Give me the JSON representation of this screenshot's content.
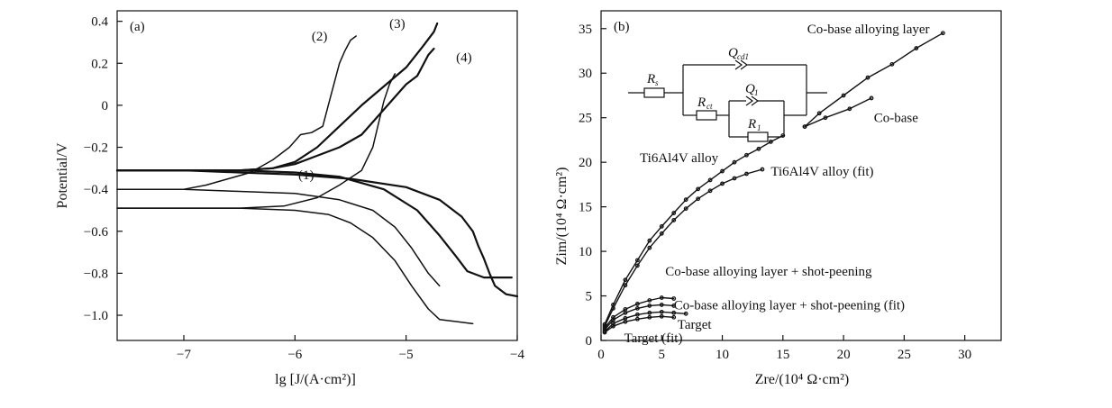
{
  "chart_data": [
    {
      "panel": "(a)",
      "type": "line",
      "xlabel": "lg [J/(A·cm²)]",
      "ylabel": "Potential/V",
      "xlim": [
        -7.6,
        -4.0
      ],
      "ylim": [
        -1.12,
        0.45
      ],
      "xticks": [
        "−7",
        "−6",
        "−5",
        "−4"
      ],
      "xtick_values": [
        -7,
        -6,
        -5,
        -4
      ],
      "yticks": [
        "0.4",
        "0.2",
        "0",
        "−0.2",
        "−0.4",
        "−0.6",
        "−0.8",
        "−1.0"
      ],
      "ytick_values": [
        0.4,
        0.2,
        0,
        -0.2,
        -0.4,
        -0.6,
        -0.8,
        -1.0
      ],
      "series": [
        {
          "name": "(1)",
          "label_pos": [
            -5.97,
            -0.33
          ],
          "cathodic": [
            [
              -7.6,
              -0.49
            ],
            [
              -7.0,
              -0.49
            ],
            [
              -6.5,
              -0.49
            ],
            [
              -6.0,
              -0.5
            ],
            [
              -5.7,
              -0.52
            ],
            [
              -5.5,
              -0.56
            ],
            [
              -5.3,
              -0.63
            ],
            [
              -5.1,
              -0.74
            ],
            [
              -4.95,
              -0.86
            ],
            [
              -4.8,
              -0.97
            ],
            [
              -4.7,
              -1.02
            ],
            [
              -4.4,
              -1.04
            ]
          ],
          "anodic": [
            [
              -7.6,
              -0.49
            ],
            [
              -7.0,
              -0.49
            ],
            [
              -6.5,
              -0.49
            ],
            [
              -6.1,
              -0.48
            ],
            [
              -5.8,
              -0.44
            ],
            [
              -5.6,
              -0.38
            ],
            [
              -5.4,
              -0.31
            ],
            [
              -5.3,
              -0.2
            ],
            [
              -5.25,
              -0.09
            ],
            [
              -5.2,
              0.02
            ],
            [
              -5.15,
              0.1
            ],
            [
              -5.1,
              0.15
            ]
          ]
        },
        {
          "name": "(2)",
          "label_pos": [
            -5.85,
            0.33
          ],
          "cathodic": [
            [
              -7.6,
              -0.4
            ],
            [
              -7.0,
              -0.4
            ],
            [
              -6.5,
              -0.41
            ],
            [
              -6.0,
              -0.42
            ],
            [
              -5.6,
              -0.45
            ],
            [
              -5.3,
              -0.5
            ],
            [
              -5.1,
              -0.58
            ],
            [
              -4.95,
              -0.68
            ],
            [
              -4.8,
              -0.8
            ],
            [
              -4.7,
              -0.86
            ]
          ],
          "anodic": [
            [
              -7.6,
              -0.4
            ],
            [
              -7.0,
              -0.4
            ],
            [
              -6.8,
              -0.38
            ],
            [
              -6.6,
              -0.35
            ],
            [
              -6.4,
              -0.32
            ],
            [
              -6.2,
              -0.26
            ],
            [
              -6.05,
              -0.2
            ],
            [
              -5.95,
              -0.14
            ],
            [
              -5.85,
              -0.13
            ],
            [
              -5.75,
              -0.1
            ],
            [
              -5.7,
              0.0
            ],
            [
              -5.65,
              0.1
            ],
            [
              -5.6,
              0.2
            ],
            [
              -5.55,
              0.26
            ],
            [
              -5.5,
              0.31
            ],
            [
              -5.45,
              0.33
            ]
          ]
        },
        {
          "name": "(3)",
          "label_pos": [
            -5.15,
            0.39
          ],
          "cathodic": [
            [
              -7.6,
              -0.31
            ],
            [
              -7.0,
              -0.31
            ],
            [
              -6.5,
              -0.31
            ],
            [
              -6.0,
              -0.32
            ],
            [
              -5.6,
              -0.34
            ],
            [
              -5.2,
              -0.4
            ],
            [
              -4.9,
              -0.5
            ],
            [
              -4.7,
              -0.62
            ],
            [
              -4.55,
              -0.72
            ],
            [
              -4.45,
              -0.79
            ],
            [
              -4.3,
              -0.82
            ],
            [
              -4.05,
              -0.82
            ]
          ],
          "anodic": [
            [
              -7.6,
              -0.31
            ],
            [
              -7.0,
              -0.31
            ],
            [
              -6.5,
              -0.31
            ],
            [
              -6.2,
              -0.3
            ],
            [
              -6.0,
              -0.27
            ],
            [
              -5.8,
              -0.2
            ],
            [
              -5.6,
              -0.1
            ],
            [
              -5.4,
              0.0
            ],
            [
              -5.2,
              0.09
            ],
            [
              -5.0,
              0.18
            ],
            [
              -4.85,
              0.28
            ],
            [
              -4.75,
              0.35
            ],
            [
              -4.72,
              0.39
            ]
          ]
        },
        {
          "name": "(4)",
          "label_pos": [
            -4.55,
            0.23
          ],
          "cathodic": [
            [
              -7.6,
              -0.31
            ],
            [
              -7.0,
              -0.31
            ],
            [
              -6.5,
              -0.32
            ],
            [
              -6.0,
              -0.33
            ],
            [
              -5.5,
              -0.35
            ],
            [
              -5.0,
              -0.39
            ],
            [
              -4.7,
              -0.45
            ],
            [
              -4.5,
              -0.53
            ],
            [
              -4.4,
              -0.6
            ],
            [
              -4.35,
              -0.67
            ],
            [
              -4.3,
              -0.73
            ],
            [
              -4.25,
              -0.8
            ],
            [
              -4.2,
              -0.86
            ],
            [
              -4.1,
              -0.9
            ],
            [
              -4.0,
              -0.91
            ]
          ],
          "anodic": [
            [
              -7.6,
              -0.31
            ],
            [
              -7.0,
              -0.31
            ],
            [
              -6.5,
              -0.31
            ],
            [
              -6.2,
              -0.3
            ],
            [
              -6.0,
              -0.28
            ],
            [
              -5.8,
              -0.24
            ],
            [
              -5.6,
              -0.2
            ],
            [
              -5.4,
              -0.14
            ],
            [
              -5.25,
              -0.05
            ],
            [
              -5.1,
              0.04
            ],
            [
              -5.0,
              0.1
            ],
            [
              -4.9,
              0.14
            ],
            [
              -4.85,
              0.19
            ],
            [
              -4.8,
              0.24
            ],
            [
              -4.75,
              0.27
            ]
          ]
        }
      ]
    },
    {
      "panel": "(b)",
      "type": "scatter",
      "xlabel": "Zre/(10⁴ Ω·cm²)",
      "ylabel": "Zim/(10⁴ Ω·cm²)",
      "xlim": [
        0,
        33
      ],
      "ylim": [
        0,
        37
      ],
      "xticks": [
        "0",
        "5",
        "10",
        "15",
        "20",
        "25",
        "30"
      ],
      "xtick_values": [
        0,
        5,
        10,
        15,
        20,
        25,
        30
      ],
      "yticks": [
        "0",
        "5",
        "10",
        "15",
        "20",
        "25",
        "30",
        "35"
      ],
      "ytick_values": [
        0,
        5,
        10,
        15,
        20,
        25,
        30,
        35
      ],
      "series": [
        {
          "name": "Co-base alloying layer",
          "label_pos": [
            17.0,
            35.0
          ],
          "points": [
            [
              16.8,
              24.0
            ],
            [
              18.0,
              25.5
            ],
            [
              20.0,
              27.5
            ],
            [
              22.0,
              29.5
            ],
            [
              24.0,
              31.0
            ],
            [
              26.0,
              32.8
            ],
            [
              28.2,
              34.5
            ]
          ]
        },
        {
          "name": "Co-base",
          "label_pos": [
            22.5,
            25.0
          ],
          "points": [
            [
              16.8,
              24.0
            ],
            [
              18.5,
              25.0
            ],
            [
              20.5,
              26.0
            ],
            [
              22.3,
              27.2
            ]
          ]
        },
        {
          "name": "Ti6Al4V alloy",
          "label_pos": [
            3.2,
            20.5
          ],
          "points": [
            [
              0.3,
              1.8
            ],
            [
              1.0,
              4.0
            ],
            [
              2.0,
              6.8
            ],
            [
              3.0,
              9.0
            ],
            [
              4.0,
              11.2
            ],
            [
              5.0,
              12.8
            ],
            [
              6.0,
              14.3
            ],
            [
              7.0,
              15.8
            ],
            [
              8.0,
              17.0
            ],
            [
              9.0,
              18.0
            ],
            [
              10.0,
              19.0
            ],
            [
              11.0,
              20.0
            ],
            [
              12.0,
              20.8
            ],
            [
              13.0,
              21.5
            ],
            [
              14.0,
              22.3
            ],
            [
              15.0,
              23.0
            ]
          ]
        },
        {
          "name": "Ti6Al4V alloy (fit)",
          "label_pos": [
            14.0,
            19.0
          ],
          "points": [
            [
              0.3,
              1.6
            ],
            [
              1.0,
              3.6
            ],
            [
              2.0,
              6.2
            ],
            [
              3.0,
              8.4
            ],
            [
              4.0,
              10.4
            ],
            [
              5.0,
              12.0
            ],
            [
              6.0,
              13.5
            ],
            [
              7.0,
              14.8
            ],
            [
              8.0,
              15.9
            ],
            [
              9.0,
              16.8
            ],
            [
              10.0,
              17.6
            ],
            [
              11.0,
              18.2
            ],
            [
              12.0,
              18.7
            ],
            [
              13.3,
              19.2
            ]
          ]
        },
        {
          "name": "Co-base alloying layer + shot-peening",
          "label_pos": [
            5.3,
            7.8
          ],
          "points": [
            [
              0.3,
              1.4
            ],
            [
              1.0,
              2.6
            ],
            [
              2.0,
              3.5
            ],
            [
              3.0,
              4.1
            ],
            [
              4.0,
              4.5
            ],
            [
              5.0,
              4.8
            ],
            [
              6.0,
              4.7
            ]
          ]
        },
        {
          "name": "Co-base alloying layer + shot-peening (fit)",
          "label_pos": [
            6.0,
            4.0
          ],
          "points": [
            [
              0.3,
              1.2
            ],
            [
              1.0,
              2.3
            ],
            [
              2.0,
              3.1
            ],
            [
              3.0,
              3.6
            ],
            [
              4.0,
              3.9
            ],
            [
              5.0,
              4.0
            ],
            [
              6.0,
              3.9
            ]
          ]
        },
        {
          "name": "Target",
          "label_pos": [
            6.3,
            1.8
          ],
          "points": [
            [
              0.3,
              1.0
            ],
            [
              1.0,
              1.9
            ],
            [
              2.0,
              2.5
            ],
            [
              3.0,
              2.9
            ],
            [
              4.0,
              3.1
            ],
            [
              5.0,
              3.2
            ],
            [
              6.0,
              3.1
            ],
            [
              7.0,
              3.0
            ]
          ]
        },
        {
          "name": "Target (fit)",
          "label_pos": [
            1.9,
            0.3
          ],
          "points": [
            [
              0.3,
              0.9
            ],
            [
              1.0,
              1.6
            ],
            [
              2.0,
              2.1
            ],
            [
              3.0,
              2.4
            ],
            [
              4.0,
              2.6
            ],
            [
              5.0,
              2.7
            ],
            [
              6.0,
              2.6
            ]
          ]
        }
      ],
      "inset_labels": [
        "R",
        "s",
        "Q",
        "cd1",
        "R",
        "ct",
        "Q",
        "1",
        "R",
        "1"
      ]
    }
  ]
}
